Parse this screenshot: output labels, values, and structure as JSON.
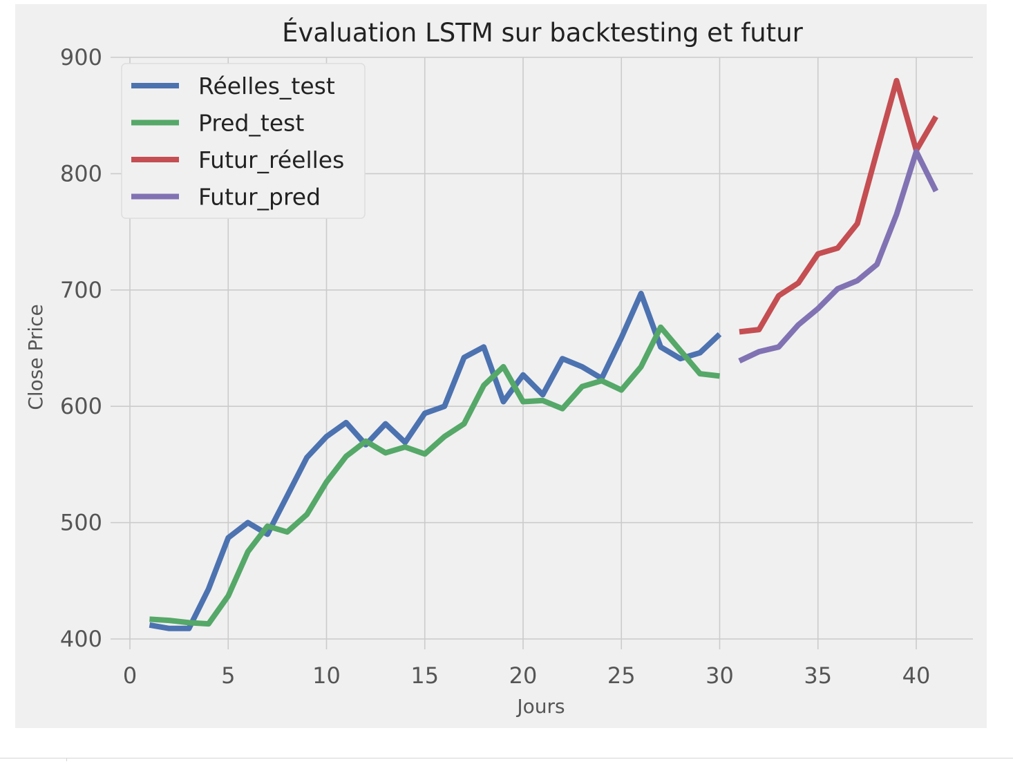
{
  "chart_data": {
    "type": "line",
    "title": "Évaluation LSTM sur backtesting et futur",
    "xlabel": "Jours",
    "ylabel": "Close Price",
    "xlim": [
      -1.5,
      42.5
    ],
    "ylim": [
      392,
      900
    ],
    "xticks": [
      0,
      5,
      10,
      15,
      20,
      25,
      30,
      35,
      40
    ],
    "yticks": [
      400,
      500,
      600,
      700,
      800,
      900
    ],
    "grid": true,
    "legend_position": "top-left",
    "style": "ggplot-like gray background",
    "colors": {
      "background": "#f0f0f0",
      "grid": "#cbcbcb",
      "text": "#555555",
      "title": "#222222"
    },
    "series": [
      {
        "name": "Réelles_test",
        "color": "#4c72b0",
        "x": [
          1,
          2,
          3,
          4,
          5,
          6,
          7,
          8,
          9,
          10,
          11,
          12,
          13,
          14,
          15,
          16,
          17,
          18,
          19,
          20,
          21,
          22,
          23,
          24,
          25,
          26,
          27,
          28,
          29,
          30
        ],
        "y": [
          412,
          409,
          409,
          443,
          487,
          500,
          490,
          523,
          556,
          574,
          586,
          567,
          585,
          569,
          594,
          600,
          642,
          651,
          604,
          627,
          610,
          641,
          634,
          624,
          659,
          697,
          651,
          641,
          646,
          662
        ]
      },
      {
        "name": "Pred_test",
        "color": "#55a868",
        "x": [
          1,
          2,
          3,
          4,
          5,
          6,
          7,
          8,
          9,
          10,
          11,
          12,
          13,
          14,
          15,
          16,
          17,
          18,
          19,
          20,
          21,
          22,
          23,
          24,
          25,
          26,
          27,
          28,
          29,
          30
        ],
        "y": [
          417,
          416,
          414,
          413,
          437,
          475,
          497,
          492,
          507,
          535,
          557,
          570,
          560,
          565,
          559,
          574,
          585,
          618,
          634,
          604,
          605,
          598,
          617,
          622,
          614,
          634,
          668,
          648,
          628,
          626
        ]
      },
      {
        "name": "Futur_réelles",
        "color": "#c44e52",
        "x": [
          31,
          32,
          33,
          34,
          35,
          36,
          37,
          38,
          39,
          40,
          41
        ],
        "y": [
          664,
          666,
          695,
          706,
          731,
          736,
          757,
          819,
          880,
          820,
          849
        ]
      },
      {
        "name": "Futur_pred",
        "color": "#8172b3",
        "x": [
          31,
          32,
          33,
          34,
          35,
          36,
          37,
          38,
          39,
          40,
          41
        ],
        "y": [
          639,
          647,
          651,
          670,
          684,
          701,
          708,
          722,
          765,
          819,
          785
        ]
      }
    ]
  }
}
